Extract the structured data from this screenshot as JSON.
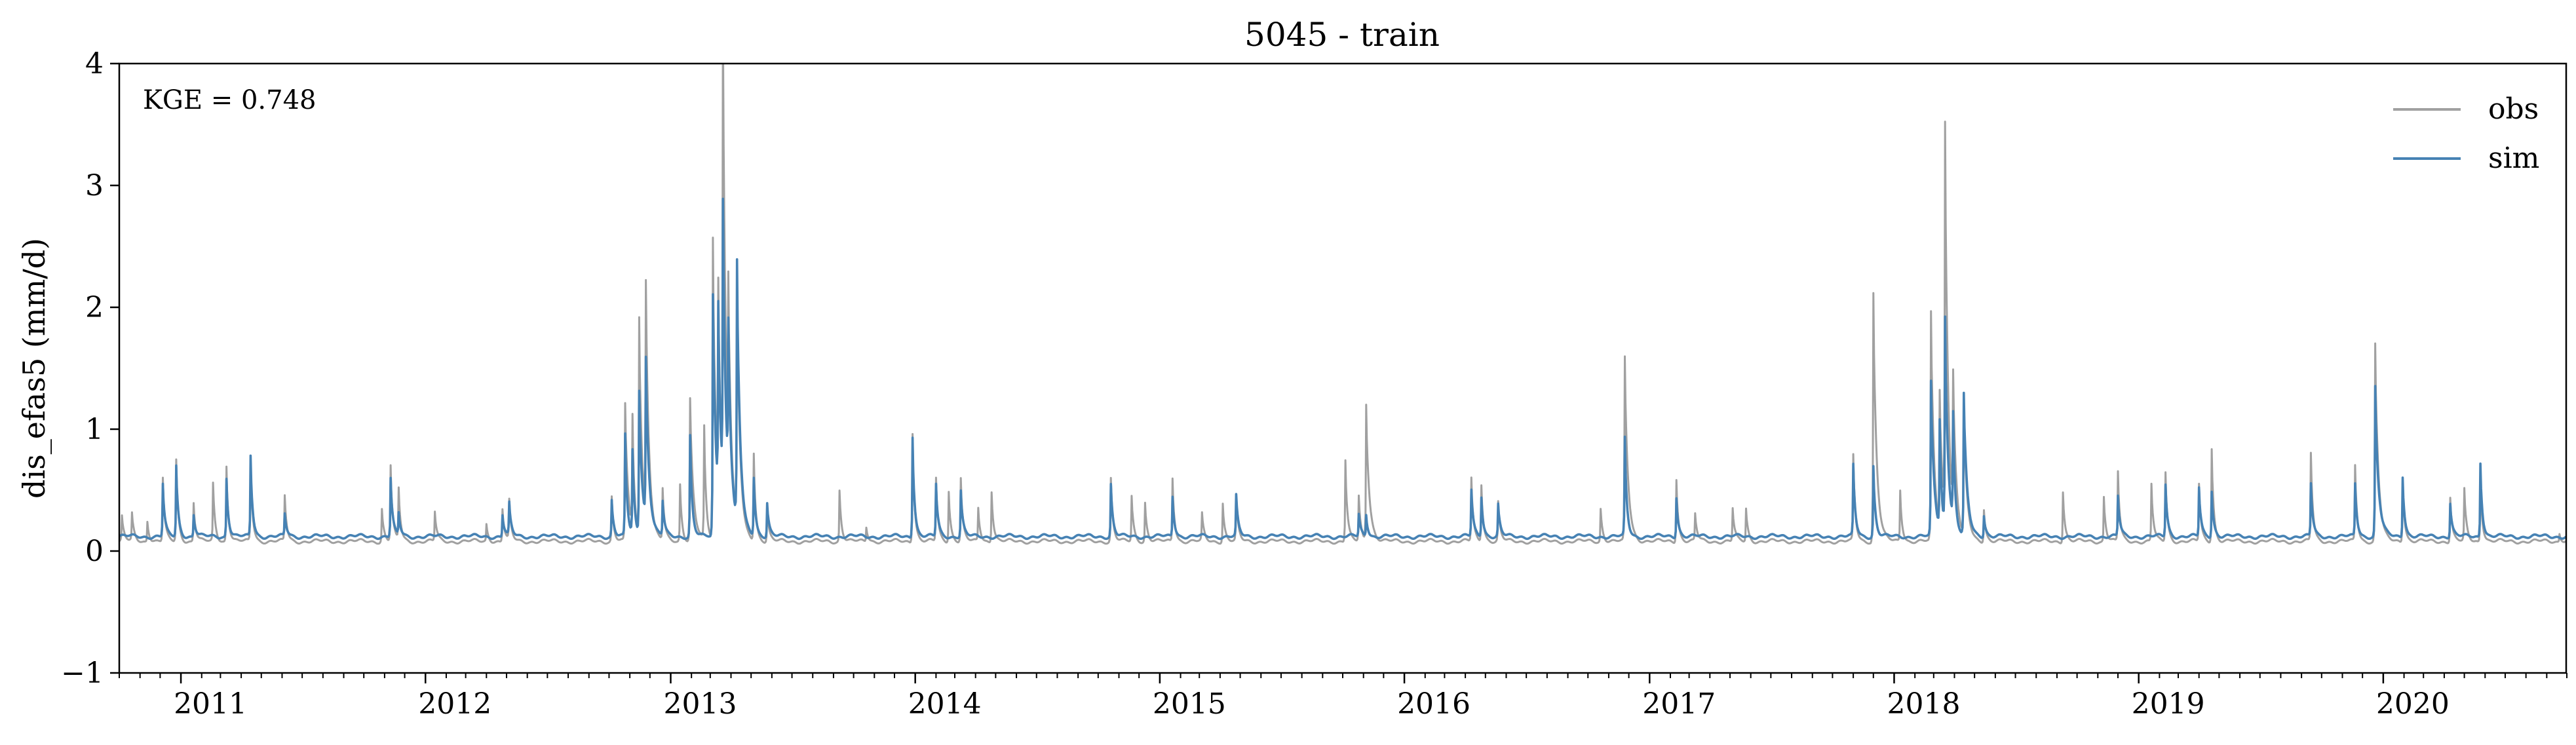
{
  "chart_data": {
    "type": "line",
    "title": "5045 - train",
    "xlabel": "",
    "ylabel": "dis_efas5 (mm/d)",
    "xlim": [
      "2010-10-01",
      "2020-09-30"
    ],
    "ylim": [
      -1,
      4
    ],
    "yticks": [
      -1,
      0,
      1,
      2,
      3,
      4
    ],
    "ytick_labels": [
      "−1",
      "0",
      "1",
      "2",
      "3",
      "4"
    ],
    "xtick_labels": [
      "2011",
      "2012",
      "2013",
      "2014",
      "2015",
      "2016",
      "2017",
      "2018",
      "2019",
      "2020"
    ],
    "grid": false,
    "legend": {
      "position": "top-right",
      "entries": [
        "obs",
        "sim"
      ]
    },
    "annotation": "KGE = 0.748",
    "colors": {
      "obs": "#a0a0a0",
      "sim": "#4682b4",
      "axes": "#000000"
    },
    "baseline": {
      "obs": 0.08,
      "sim": 0.12
    },
    "series": [
      {
        "name": "obs",
        "peaks": [
          [
            "2010-10-05",
            0.28
          ],
          [
            "2010-10-20",
            0.3
          ],
          [
            "2010-11-12",
            0.25
          ],
          [
            "2010-12-05",
            0.6
          ],
          [
            "2010-12-25",
            0.75
          ],
          [
            "2011-01-20",
            0.4
          ],
          [
            "2011-02-18",
            0.55
          ],
          [
            "2011-03-10",
            0.7
          ],
          [
            "2011-04-15",
            0.75
          ],
          [
            "2011-06-05",
            0.45
          ],
          [
            "2011-10-28",
            0.35
          ],
          [
            "2011-11-10",
            0.7
          ],
          [
            "2011-11-22",
            0.5
          ],
          [
            "2012-01-15",
            0.32
          ],
          [
            "2012-04-01",
            0.22
          ],
          [
            "2012-04-25",
            0.35
          ],
          [
            "2012-05-05",
            0.4
          ],
          [
            "2012-10-05",
            0.45
          ],
          [
            "2012-10-25",
            1.2
          ],
          [
            "2012-11-05",
            1.0
          ],
          [
            "2012-11-15",
            1.88
          ],
          [
            "2012-11-25",
            2.0
          ],
          [
            "2012-12-20",
            0.5
          ],
          [
            "2013-01-15",
            0.55
          ],
          [
            "2013-01-30",
            1.25
          ],
          [
            "2013-02-20",
            1.0
          ],
          [
            "2013-03-05",
            2.55
          ],
          [
            "2013-03-13",
            1.8
          ],
          [
            "2013-03-20",
            3.85
          ],
          [
            "2013-03-28",
            1.5
          ],
          [
            "2013-04-10",
            2.0
          ],
          [
            "2013-05-05",
            0.8
          ],
          [
            "2013-05-25",
            0.35
          ],
          [
            "2013-09-10",
            0.5
          ],
          [
            "2013-10-20",
            0.2
          ],
          [
            "2013-12-28",
            0.98
          ],
          [
            "2014-02-01",
            0.6
          ],
          [
            "2014-02-20",
            0.5
          ],
          [
            "2014-03-10",
            0.6
          ],
          [
            "2014-04-05",
            0.35
          ],
          [
            "2014-04-25",
            0.5
          ],
          [
            "2014-10-20",
            0.6
          ],
          [
            "2014-11-20",
            0.45
          ],
          [
            "2014-12-10",
            0.4
          ],
          [
            "2015-01-20",
            0.6
          ],
          [
            "2015-03-05",
            0.3
          ],
          [
            "2015-04-05",
            0.4
          ],
          [
            "2015-04-25",
            0.45
          ],
          [
            "2015-10-05",
            0.75
          ],
          [
            "2015-10-25",
            0.45
          ],
          [
            "2015-11-05",
            1.2
          ],
          [
            "2016-04-10",
            0.6
          ],
          [
            "2016-04-25",
            0.55
          ],
          [
            "2016-05-20",
            0.4
          ],
          [
            "2016-10-20",
            0.35
          ],
          [
            "2016-11-25",
            1.58
          ],
          [
            "2017-02-10",
            0.6
          ],
          [
            "2017-03-10",
            0.3
          ],
          [
            "2017-05-05",
            0.35
          ],
          [
            "2017-05-25",
            0.35
          ],
          [
            "2017-11-01",
            0.78
          ],
          [
            "2017-12-01",
            2.12
          ],
          [
            "2018-01-10",
            0.5
          ],
          [
            "2018-02-25",
            1.95
          ],
          [
            "2018-03-10",
            1.2
          ],
          [
            "2018-03-18",
            3.3
          ],
          [
            "2018-03-30",
            1.2
          ],
          [
            "2018-04-15",
            1.1
          ],
          [
            "2018-05-15",
            0.35
          ],
          [
            "2018-09-10",
            0.5
          ],
          [
            "2018-11-10",
            0.45
          ],
          [
            "2018-12-01",
            0.65
          ],
          [
            "2019-01-20",
            0.55
          ],
          [
            "2019-02-10",
            0.65
          ],
          [
            "2019-04-01",
            0.55
          ],
          [
            "2019-04-20",
            0.85
          ],
          [
            "2019-09-15",
            0.8
          ],
          [
            "2019-11-20",
            0.7
          ],
          [
            "2019-12-20",
            1.7
          ],
          [
            "2020-01-30",
            0.6
          ],
          [
            "2020-04-10",
            0.45
          ],
          [
            "2020-05-01",
            0.5
          ],
          [
            "2020-05-25",
            0.6
          ],
          [
            "2020-09-20",
            0.15
          ]
        ]
      },
      {
        "name": "sim",
        "peaks": [
          [
            "2010-12-05",
            0.55
          ],
          [
            "2010-12-25",
            0.7
          ],
          [
            "2011-01-20",
            0.3
          ],
          [
            "2011-03-10",
            0.6
          ],
          [
            "2011-04-15",
            0.78
          ],
          [
            "2011-06-05",
            0.3
          ],
          [
            "2011-11-10",
            0.6
          ],
          [
            "2011-11-22",
            0.3
          ],
          [
            "2012-04-25",
            0.3
          ],
          [
            "2012-05-05",
            0.38
          ],
          [
            "2012-10-05",
            0.42
          ],
          [
            "2012-10-25",
            0.95
          ],
          [
            "2012-11-05",
            0.8
          ],
          [
            "2012-11-15",
            1.3
          ],
          [
            "2012-11-25",
            1.45
          ],
          [
            "2012-12-20",
            0.4
          ],
          [
            "2013-01-30",
            0.95
          ],
          [
            "2013-03-05",
            2.1
          ],
          [
            "2013-03-13",
            1.7
          ],
          [
            "2013-03-20",
            2.45
          ],
          [
            "2013-03-28",
            1.4
          ],
          [
            "2013-04-10",
            2.25
          ],
          [
            "2013-05-05",
            0.6
          ],
          [
            "2013-05-25",
            0.4
          ],
          [
            "2013-12-28",
            0.95
          ],
          [
            "2014-02-01",
            0.55
          ],
          [
            "2014-03-10",
            0.5
          ],
          [
            "2014-10-20",
            0.55
          ],
          [
            "2015-01-20",
            0.45
          ],
          [
            "2015-04-25",
            0.45
          ],
          [
            "2015-10-25",
            0.3
          ],
          [
            "2015-11-05",
            0.3
          ],
          [
            "2016-04-10",
            0.5
          ],
          [
            "2016-04-25",
            0.45
          ],
          [
            "2016-05-20",
            0.38
          ],
          [
            "2016-11-25",
            0.92
          ],
          [
            "2017-02-10",
            0.45
          ],
          [
            "2017-11-01",
            0.7
          ],
          [
            "2017-12-01",
            0.7
          ],
          [
            "2018-02-25",
            1.38
          ],
          [
            "2018-03-10",
            1.0
          ],
          [
            "2018-03-18",
            1.85
          ],
          [
            "2018-03-30",
            1.0
          ],
          [
            "2018-04-15",
            1.27
          ],
          [
            "2018-05-15",
            0.3
          ],
          [
            "2018-12-01",
            0.45
          ],
          [
            "2019-02-10",
            0.55
          ],
          [
            "2019-04-01",
            0.52
          ],
          [
            "2019-04-20",
            0.5
          ],
          [
            "2019-09-15",
            0.55
          ],
          [
            "2019-11-20",
            0.55
          ],
          [
            "2019-12-20",
            1.35
          ],
          [
            "2020-01-30",
            0.62
          ],
          [
            "2020-04-10",
            0.4
          ],
          [
            "2020-05-25",
            0.73
          ],
          [
            "2020-09-20",
            0.12
          ]
        ]
      }
    ]
  }
}
